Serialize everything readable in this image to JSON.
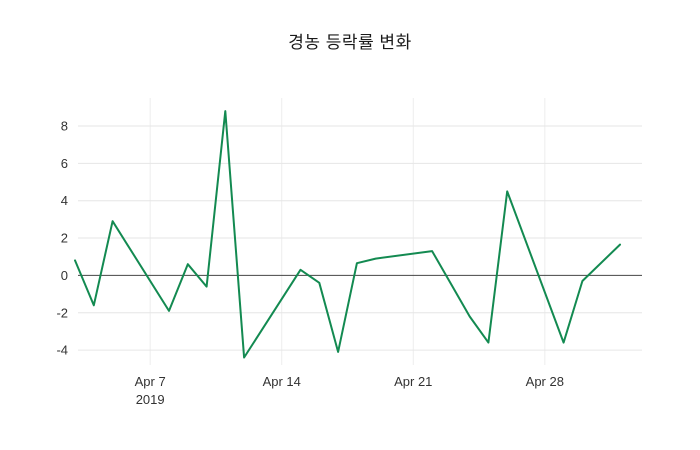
{
  "chart_data": {
    "type": "line",
    "title": "경농 등락률 변화",
    "series_name": "등락률",
    "line_color": "#138a51",
    "zero_line_color": "#444444",
    "grid_color": "#e6e6e6",
    "grid": true,
    "legend": "none",
    "ylim": [
      -4.8,
      9.5
    ],
    "yticks": [
      -4,
      -2,
      0,
      2,
      4,
      6,
      8
    ],
    "xticks": [
      {
        "label": "Apr 7",
        "sublabel": "2019",
        "day": 7
      },
      {
        "label": "Apr 14",
        "sublabel": "",
        "day": 14
      },
      {
        "label": "Apr 21",
        "sublabel": "",
        "day": 21
      },
      {
        "label": "Apr 28",
        "sublabel": "",
        "day": 28
      }
    ],
    "points": [
      {
        "date": "2019-04-03",
        "day": 3,
        "value": 0.8
      },
      {
        "date": "2019-04-04",
        "day": 4,
        "value": -1.6
      },
      {
        "date": "2019-04-05",
        "day": 5,
        "value": 2.9
      },
      {
        "date": "2019-04-08",
        "day": 8,
        "value": -1.9
      },
      {
        "date": "2019-04-09",
        "day": 9,
        "value": 0.6
      },
      {
        "date": "2019-04-10",
        "day": 10,
        "value": -0.6
      },
      {
        "date": "2019-04-11",
        "day": 11,
        "value": 8.8
      },
      {
        "date": "2019-04-12",
        "day": 12,
        "value": -4.4
      },
      {
        "date": "2019-04-15",
        "day": 15,
        "value": 0.3
      },
      {
        "date": "2019-04-16",
        "day": 16,
        "value": -0.4
      },
      {
        "date": "2019-04-17",
        "day": 17,
        "value": -4.1
      },
      {
        "date": "2019-04-18",
        "day": 18,
        "value": 0.65
      },
      {
        "date": "2019-04-19",
        "day": 19,
        "value": 0.9
      },
      {
        "date": "2019-04-22",
        "day": 22,
        "value": 1.3
      },
      {
        "date": "2019-04-23",
        "day": 23,
        "value": -0.45
      },
      {
        "date": "2019-04-24",
        "day": 24,
        "value": -2.2
      },
      {
        "date": "2019-04-25",
        "day": 25,
        "value": -3.6
      },
      {
        "date": "2019-04-26",
        "day": 26,
        "value": 4.5
      },
      {
        "date": "2019-04-29",
        "day": 29,
        "value": -3.6
      },
      {
        "date": "2019-04-30",
        "day": 30,
        "value": -0.3
      },
      {
        "date": "2019-05-02",
        "day": 32,
        "value": 1.65
      }
    ]
  }
}
